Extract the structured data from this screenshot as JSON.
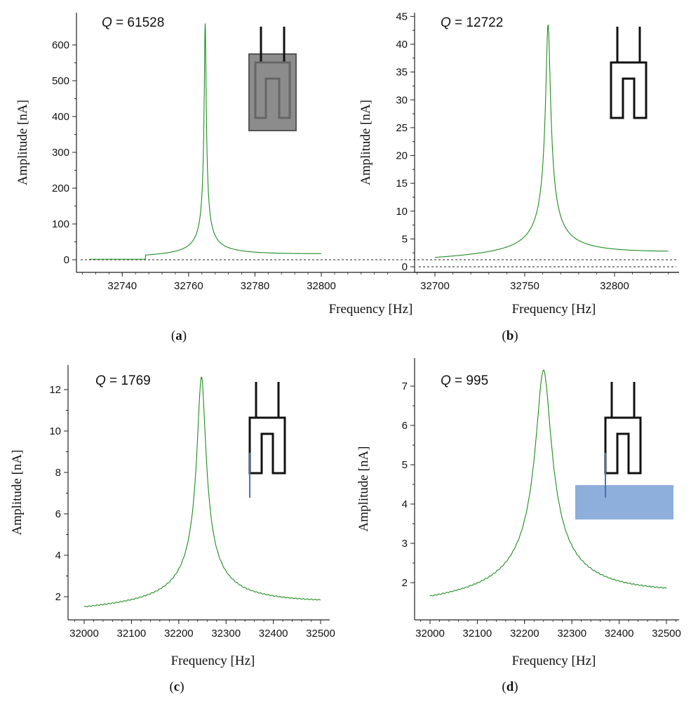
{
  "chart_data": [
    {
      "type": "line",
      "panel_label": "a",
      "q_label": "Q",
      "q_value": "= 61528",
      "xlabel": "Frequency [Hz]",
      "ylabel": "Amplitude [nA]",
      "xlim": [
        32730,
        32800
      ],
      "ylim": [
        -5,
        650
      ],
      "xticks": [
        32740,
        32760,
        32780,
        32800
      ],
      "xtick_labels": [
        "32740",
        "32760",
        "32780",
        "32800"
      ],
      "yticks": [
        0,
        100,
        200,
        300,
        400,
        500,
        600
      ],
      "ytick_labels": [
        "0",
        "100",
        "200",
        "300",
        "400",
        "500",
        "600"
      ],
      "zero_line": true,
      "series_color": "#1f8c1f",
      "peak": {
        "x": 32765,
        "y": 660
      },
      "baseline": 2,
      "x_range": [
        32730,
        32800
      ],
      "insert": "tuning-fork-immersed",
      "insert_fill": "#8c8c8c"
    },
    {
      "type": "line",
      "panel_label": "b",
      "q_label": "Q",
      "q_value": "= 12722",
      "xlabel": "Frequency [Hz]",
      "ylabel": "Amplitude [nA]",
      "xlim": [
        32700,
        32835
      ],
      "ylim": [
        -0.5,
        45
      ],
      "xticks": [
        32700,
        32750,
        32800
      ],
      "xtick_labels": [
        "32700",
        "32750",
        "32800"
      ],
      "yticks": [
        0,
        5,
        10,
        15,
        20,
        25,
        30,
        35,
        40,
        45
      ],
      "ytick_labels": [
        "0",
        "5",
        "10",
        "15",
        "20",
        "25",
        "30",
        "35",
        "40",
        "45"
      ],
      "zero_line": true,
      "series_color": "#1f8c1f",
      "peak": {
        "x": 32763,
        "y": 43.5
      },
      "baseline": 0.8,
      "x_range": [
        32700,
        32830
      ],
      "insert": "tuning-fork",
      "insert_fill": ""
    },
    {
      "type": "line",
      "panel_label": "c",
      "q_label": "Q",
      "q_value": "= 1769",
      "xlabel": "Frequency [Hz]",
      "ylabel": "Amplitude [nA]",
      "xlim": [
        32000,
        32500
      ],
      "ylim": [
        1,
        13
      ],
      "xticks": [
        32000,
        32100,
        32200,
        32300,
        32400,
        32500
      ],
      "xtick_labels": [
        "32000",
        "32100",
        "32200",
        "32300",
        "32400",
        "32500"
      ],
      "yticks": [
        2,
        4,
        6,
        8,
        10,
        12
      ],
      "ytick_labels": [
        "2",
        "4",
        "6",
        "8",
        "10",
        "12"
      ],
      "zero_line": false,
      "series_color": "#1f8c1f",
      "peak": {
        "x": 32248,
        "y": 12.6
      },
      "baseline": 1.1,
      "x_range": [
        32000,
        32500
      ],
      "insert": "tuning-fork-with-probe",
      "insert_fill": "",
      "probe_color": "#4a72b0"
    },
    {
      "type": "line",
      "panel_label": "d",
      "q_label": "Q",
      "q_value": "= 995",
      "xlabel": "Frequency [Hz]",
      "ylabel": "Amplitude [nA]",
      "xlim": [
        32000,
        32500
      ],
      "ylim": [
        1.4,
        7.6
      ],
      "xticks": [
        32000,
        32100,
        32200,
        32300,
        32400,
        32500
      ],
      "xtick_labels": [
        "32000",
        "32100",
        "32200",
        "32300",
        "32400",
        "32500"
      ],
      "yticks": [
        2,
        3,
        4,
        5,
        6,
        7
      ],
      "ytick_labels": [
        "2",
        "3",
        "4",
        "5",
        "6",
        "7"
      ],
      "zero_line": false,
      "series_color": "#1f8c1f",
      "peak": {
        "x": 32240,
        "y": 7.4
      },
      "baseline": 1.25,
      "x_range": [
        32000,
        32500
      ],
      "insert": "tuning-fork-probe-in-liquid",
      "insert_fill": "",
      "probe_color": "#4a72b0",
      "liquid_color": "#8eaedb"
    }
  ]
}
